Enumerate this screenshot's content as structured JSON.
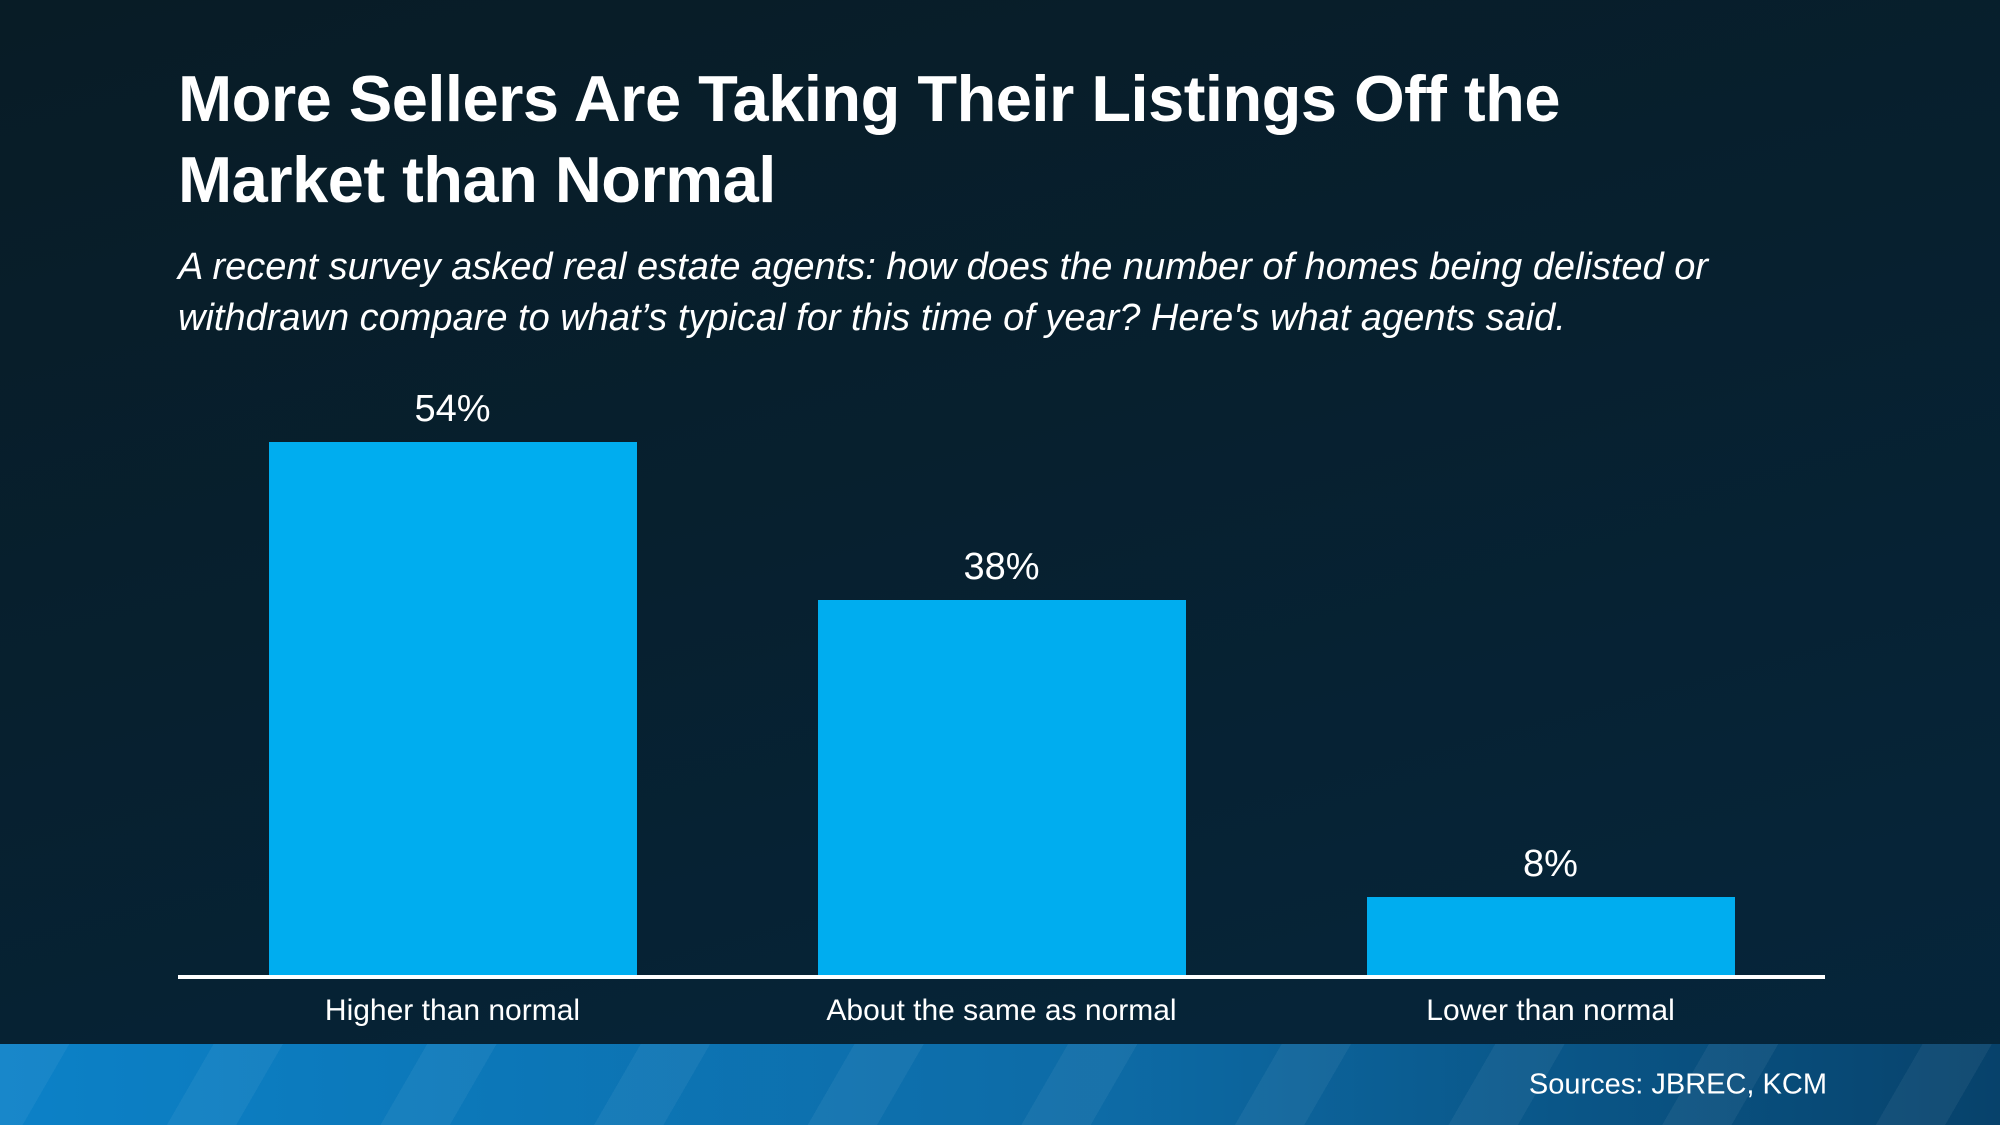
{
  "page": {
    "title": "More Sellers Are Taking Their Listings Off the Market than Normal",
    "subtitle": "A recent survey asked real estate agents: how does the number of homes being delisted or withdrawn compare to what’s typical for this time of year? Here's what agents said.",
    "source_label": "Sources: JBREC, KCM"
  },
  "colors": {
    "background_top": "#081C26",
    "background_bottom": "#05263C",
    "bar": "#00ADEF",
    "axis": "#FFFFFF",
    "text": "#FFFFFF",
    "footer_left": "#0C81C7",
    "footer_right": "#07426B"
  },
  "chart_data": {
    "type": "bar",
    "title": "More Sellers Are Taking Their Listings Off the Market than Normal",
    "subtitle": "A recent survey asked real estate agents: how does the number of homes being delisted or withdrawn compare to what’s typical for this time of year? Here's what agents said.",
    "categories": [
      "Higher than normal",
      "About the same as normal",
      "Lower than normal"
    ],
    "values": [
      54,
      38,
      8
    ],
    "value_labels": [
      "54%",
      "38%",
      "8%"
    ],
    "xlabel": "",
    "ylabel": "",
    "ylim": [
      0,
      60
    ],
    "grid": false,
    "legend": false,
    "bar_color": "#00ADEF",
    "annotation": "Sources: JBREC, KCM"
  }
}
